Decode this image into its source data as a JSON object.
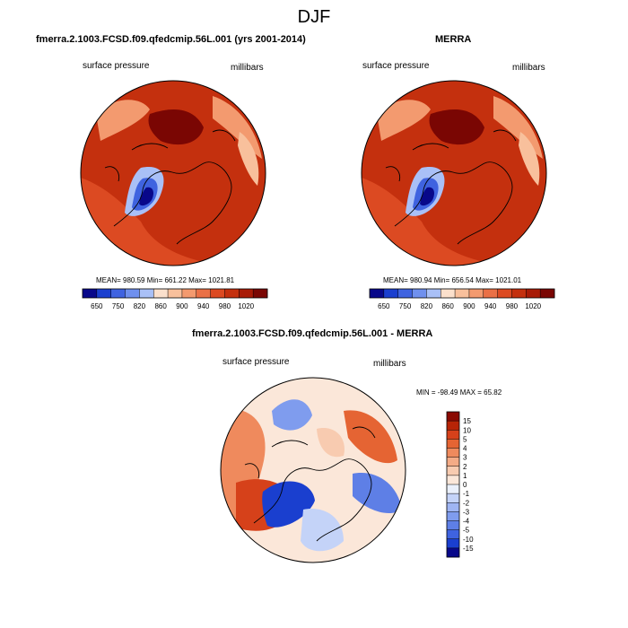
{
  "page": {
    "title": "DJF"
  },
  "colors": {
    "colormap_seq": [
      "#08088a",
      "#1a3fcf",
      "#3f63e0",
      "#6f90ee",
      "#a9c0f7",
      "#fbe0cc",
      "#f8c09c",
      "#f39a6f",
      "#ea7046",
      "#dc4a22",
      "#c4300e",
      "#a81a06",
      "#7a0603"
    ],
    "colormap_div": [
      "#08088a",
      "#1a3fcf",
      "#3f63e0",
      "#5e7fe6",
      "#7f9cee",
      "#9fb5f3",
      "#c4d3f8",
      "#eaf0fb",
      "#fbe7d9",
      "#f8cbb0",
      "#f4ab86",
      "#ef8a5d",
      "#e56433",
      "#d6411a",
      "#b72407",
      "#8a0a02"
    ]
  },
  "chart_data": [
    {
      "type": "heatmap",
      "projection": "polar-stereographic (north pole)",
      "title": "fmerra.2.1003.FCSD.f09.qfedcmip.56L.001 (yrs 2001-2014)",
      "left_label": "surface pressure",
      "right_label": "millibars",
      "stats": "MEAN= 980.59  Min= 661.22  Max= 1021.81",
      "mean": 980.59,
      "min": 661.22,
      "max": 1021.81,
      "colorbar": {
        "orientation": "horizontal",
        "n_colors": 13,
        "tick_labels": [
          "650",
          "750",
          "820",
          "860",
          "900",
          "940",
          "980",
          "1020"
        ]
      }
    },
    {
      "type": "heatmap",
      "projection": "polar-stereographic (north pole)",
      "title": "MERRA",
      "left_label": "surface pressure",
      "right_label": "millibars",
      "stats": "MEAN= 980.94  Min= 656.54  Max= 1021.01",
      "mean": 980.94,
      "min": 656.54,
      "max": 1021.01,
      "colorbar": {
        "orientation": "horizontal",
        "n_colors": 13,
        "tick_labels": [
          "650",
          "750",
          "820",
          "860",
          "900",
          "940",
          "980",
          "1020"
        ]
      }
    },
    {
      "type": "heatmap",
      "projection": "polar-stereographic (north pole)",
      "title": "fmerra.2.1003.FCSD.f09.qfedcmip.56L.001 - MERRA",
      "left_label": "surface pressure",
      "right_label": "millibars",
      "stats": "MIN = -98.49 MAX =  65.82",
      "min": -98.49,
      "max": 65.82,
      "colorbar": {
        "orientation": "vertical",
        "n_colors": 16,
        "tick_labels": [
          "15",
          "10",
          "5",
          "4",
          "3",
          "2",
          "1",
          "0",
          "-1",
          "-2",
          "-3",
          "-4",
          "-5",
          "-10",
          "-15"
        ]
      }
    }
  ]
}
